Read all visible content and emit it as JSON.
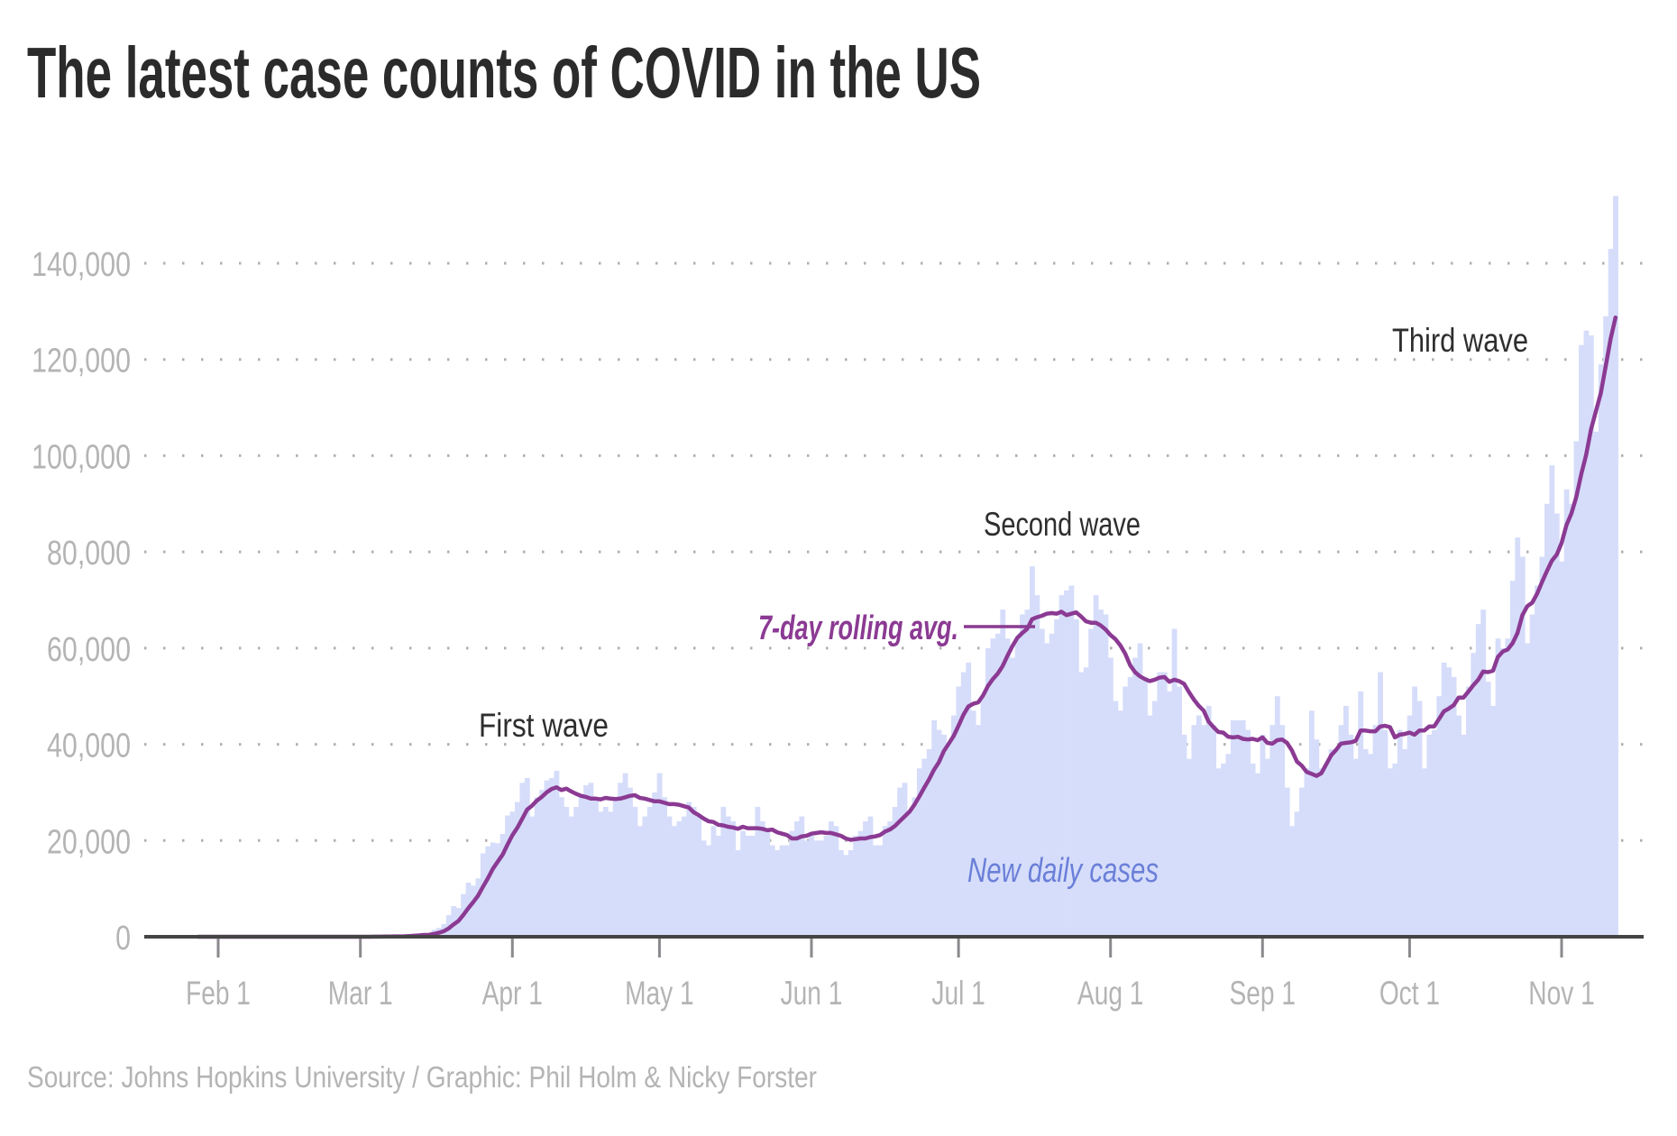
{
  "title": "The latest case counts of COVID in the US",
  "source": "Source: Johns Hopkins University / Graphic: Phil Holm & Nicky Forster",
  "colors": {
    "bars": "#d6ddfa",
    "avg_line": "#8b3a93",
    "daily_label": "#6a7fd8",
    "axis": "#444444",
    "grid": "#b0b0b0"
  },
  "chart_data": {
    "type": "bar",
    "title": "The latest case counts of COVID in the US",
    "xlabel": "",
    "ylabel": "",
    "x_range": [
      "2020-01-22",
      "2020-11-12"
    ],
    "ylim": [
      0,
      150000
    ],
    "grid": "horizontal dotted",
    "y_ticks": [
      0,
      20000,
      40000,
      60000,
      80000,
      100000,
      120000,
      140000
    ],
    "y_tick_labels": [
      "0",
      "20,000",
      "40,000",
      "60,000",
      "80,000",
      "100,000",
      "120,000",
      "140,000"
    ],
    "x_ticks": [
      "2020-02-01",
      "2020-03-01",
      "2020-04-01",
      "2020-05-01",
      "2020-06-01",
      "2020-07-01",
      "2020-08-01",
      "2020-09-01",
      "2020-10-01",
      "2020-11-01"
    ],
    "x_tick_labels": [
      "Feb 1",
      "Mar 1",
      "Apr 1",
      "May 1",
      "Jun 1",
      "Jul 1",
      "Aug 1",
      "Sep 1",
      "Oct 1",
      "Nov 1"
    ],
    "series": [
      {
        "name": "New daily cases",
        "type": "bar",
        "values_by_month": {
          "2020-01 (from Jan 22)": [
            1,
            0,
            1,
            0,
            3,
            0,
            0,
            0,
            0,
            2
          ],
          "2020-02": [
            1,
            0,
            3,
            0,
            0,
            0,
            0,
            0,
            1,
            0,
            0,
            1,
            0,
            0,
            0,
            0,
            0,
            0,
            0,
            0,
            2,
            0,
            0,
            0,
            0,
            0,
            0,
            1,
            8
          ],
          "2020-03": [
            7,
            23,
            19,
            33,
            77,
            53,
            166,
            116,
            75,
            188,
            365,
            439,
            633,
            759,
            234,
            1467,
            1833,
            2657,
            4494,
            6367,
            5995,
            8873,
            11238,
            10618,
            12115,
            17331,
            18802,
            19588,
            19426,
            21364,
            25196
          ],
          "2020-04": [
            26000,
            28000,
            32000,
            33000,
            25000,
            29000,
            30500,
            32500,
            33000,
            34500,
            29000,
            27000,
            25000,
            27000,
            29500,
            31500,
            32000,
            29000,
            26000,
            27000,
            26000,
            29000,
            32000,
            34000,
            31000,
            27000,
            23000,
            25000,
            27000,
            30000
          ],
          "2020-05": [
            34000,
            29000,
            25000,
            23000,
            24000,
            25000,
            28000,
            27000,
            25000,
            20000,
            19000,
            23000,
            21000,
            27000,
            25000,
            24000,
            18000,
            22000,
            21000,
            21000,
            27000,
            24000,
            22000,
            19000,
            18000,
            19000,
            19000,
            22000,
            24000,
            25000,
            20000
          ],
          "2020-06": [
            21000,
            20000,
            20000,
            21000,
            24000,
            23000,
            18000,
            17000,
            18000,
            21000,
            22000,
            24000,
            25000,
            19000,
            19000,
            23000,
            24000,
            27000,
            31000,
            32000,
            26000,
            29000,
            35000,
            37000,
            39000,
            45000,
            43000,
            42000,
            40000,
            46000
          ],
          "2020-07": [
            52000,
            55000,
            57000,
            47000,
            44000,
            50000,
            60000,
            62000,
            63000,
            68000,
            62000,
            58000,
            62000,
            67000,
            68000,
            77000,
            71000,
            64000,
            61000,
            63000,
            66000,
            71000,
            72000,
            73000,
            66000,
            55000,
            56000,
            64000,
            71000,
            68000,
            67000
          ],
          "2020-08": [
            58000,
            49000,
            47000,
            52000,
            54000,
            58000,
            61000,
            54000,
            46000,
            49000,
            55000,
            55000,
            51000,
            64000,
            52000,
            42000,
            37000,
            44000,
            46000,
            44000,
            48000,
            44000,
            35000,
            36000,
            38000,
            45000,
            45000,
            45000,
            43000,
            36000,
            34000
          ],
          "2020-09": [
            42000,
            37000,
            44000,
            50000,
            44000,
            31000,
            23000,
            26000,
            31000,
            35000,
            47000,
            41000,
            35000,
            36000,
            39000,
            39000,
            44000,
            48000,
            42000,
            37000,
            51000,
            39000,
            38000,
            44000,
            55000,
            43000,
            35000,
            36000,
            43000,
            39000
          ],
          "2020-10": [
            46000,
            52000,
            49000,
            35000,
            42000,
            43000,
            50000,
            57000,
            56000,
            54000,
            46000,
            42000,
            52000,
            59000,
            65000,
            68000,
            53000,
            48000,
            62000,
            60000,
            62000,
            74000,
            83000,
            79000,
            61000,
            67000,
            73000,
            79000,
            90000,
            98000,
            88000
          ],
          "2020-11": [
            78000,
            93000,
            90000,
            103000,
            123000,
            126000,
            125000,
            105000,
            119000,
            129000,
            143000,
            154000
          ]
        }
      },
      {
        "name": "7-day rolling avg.",
        "type": "line",
        "derived_from": "New daily cases"
      }
    ],
    "annotations": {
      "first_wave": "First wave",
      "second_wave": "Second wave",
      "third_wave": "Third wave",
      "avg_label": "7-day rolling avg.",
      "daily_label": "New daily cases"
    }
  }
}
